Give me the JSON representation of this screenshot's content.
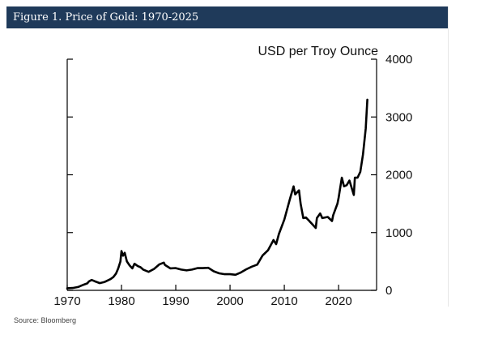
{
  "header": {
    "title": "Figure 1. Price of Gold: 1970-2025",
    "background_color": "#1f3a5a"
  },
  "footer": {
    "source": "Source: Bloomberg"
  },
  "chart_data": {
    "type": "line",
    "title": "",
    "xlabel": "",
    "ylabel": "USD per Troy Ounce",
    "y_axis_side": "right",
    "x_ticks": [
      1970,
      1980,
      1990,
      2000,
      2010,
      2020
    ],
    "y_ticks": [
      0,
      1000,
      2000,
      3000,
      4000
    ],
    "xlim": [
      1970,
      2027
    ],
    "ylim": [
      0,
      4000
    ],
    "grid": false,
    "line_color": "#000000",
    "series": [
      {
        "x": [
          1970,
          1971,
          1972,
          1973,
          1973.7,
          1974,
          1974.5,
          1975,
          1976,
          1976.7,
          1977,
          1978,
          1978.5,
          1979,
          1979.4,
          1979.8,
          1980,
          1980.3,
          1980.6,
          1981,
          1981.5,
          1982,
          1982.4,
          1983,
          1983.5,
          1984,
          1985,
          1986,
          1987,
          1987.8,
          1988,
          1989,
          1990,
          1991,
          1992,
          1993,
          1994,
          1995,
          1996,
          1997,
          1998,
          1999,
          2000,
          2001,
          2002,
          2003,
          2004,
          2005,
          2006,
          2007,
          2008,
          2008.5,
          2009,
          2010,
          2011,
          2011.7,
          2012,
          2012.7,
          2013,
          2013.5,
          2014,
          2015,
          2015.8,
          2016,
          2016.6,
          2017,
          2018,
          2018.8,
          2019,
          2019.8,
          2020,
          2020.6,
          2021,
          2021.5,
          2022,
          2022.8,
          2023,
          2023.5,
          2024,
          2024.5,
          2025,
          2025.3
        ],
        "y": [
          36,
          41,
          58,
          97,
          120,
          154,
          180,
          160,
          125,
          140,
          150,
          195,
          230,
          290,
          380,
          500,
          680,
          600,
          650,
          500,
          430,
          380,
          460,
          420,
          400,
          360,
          320,
          370,
          450,
          480,
          440,
          380,
          385,
          360,
          345,
          360,
          385,
          385,
          390,
          330,
          295,
          280,
          280,
          270,
          310,
          365,
          410,
          445,
          605,
          695,
          870,
          800,
          975,
          1225,
          1570,
          1800,
          1660,
          1730,
          1500,
          1250,
          1260,
          1160,
          1080,
          1250,
          1330,
          1250,
          1270,
          1200,
          1300,
          1500,
          1600,
          1950,
          1800,
          1820,
          1900,
          1650,
          1950,
          1950,
          2050,
          2350,
          2800,
          3300
        ]
      }
    ]
  }
}
